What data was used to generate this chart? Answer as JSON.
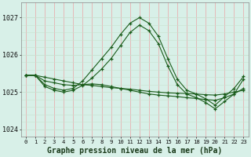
{
  "title": "Graphe pression niveau de la mer (hPa)",
  "bg_color": "#d8f0e8",
  "grid_color_v": "#e8b0b0",
  "grid_color_h": "#c8e0d0",
  "line_color": "#1a5c1a",
  "xlim_min": -0.5,
  "xlim_max": 23.5,
  "ylim": [
    1023.8,
    1027.4
  ],
  "yticks": [
    1024,
    1025,
    1026,
    1027
  ],
  "xticks": [
    0,
    1,
    2,
    3,
    4,
    5,
    6,
    7,
    8,
    9,
    10,
    11,
    12,
    13,
    14,
    15,
    16,
    17,
    18,
    19,
    20,
    21,
    22,
    23
  ],
  "xlabel_fontsize": 7,
  "series": [
    {
      "x": [
        0,
        1,
        2,
        3,
        4,
        5,
        6,
        7,
        8,
        9,
        10,
        11,
        12,
        13,
        14,
        15,
        16,
        17,
        18,
        19,
        20,
        21,
        22,
        23
      ],
      "y": [
        1025.45,
        1025.45,
        1025.4,
        1025.35,
        1025.3,
        1025.25,
        1025.2,
        1025.18,
        1025.15,
        1025.12,
        1025.1,
        1025.08,
        1025.05,
        1025.02,
        1025.0,
        1024.98,
        1024.97,
        1024.96,
        1024.95,
        1024.93,
        1024.92,
        1024.95,
        1025.0,
        1025.05
      ]
    },
    {
      "x": [
        0,
        1,
        2,
        3,
        4,
        5,
        6,
        7,
        8,
        9,
        10,
        11,
        12,
        13,
        14,
        15,
        16,
        17,
        18,
        19,
        20,
        21,
        22,
        23
      ],
      "y": [
        1025.45,
        1025.45,
        1025.3,
        1025.25,
        1025.2,
        1025.18,
        1025.2,
        1025.22,
        1025.2,
        1025.15,
        1025.1,
        1025.05,
        1025.0,
        1024.95,
        1024.92,
        1024.9,
        1024.88,
        1024.85,
        1024.83,
        1024.8,
        1024.78,
        1024.85,
        1024.95,
        1025.1
      ]
    },
    {
      "x": [
        0,
        1,
        2,
        3,
        4,
        5,
        6,
        7,
        8,
        9,
        10,
        11,
        12,
        13,
        14,
        15,
        16,
        17,
        18,
        19,
        20,
        21,
        22,
        23
      ],
      "y": [
        1025.45,
        1025.45,
        1025.2,
        1025.1,
        1025.05,
        1025.1,
        1025.3,
        1025.6,
        1025.9,
        1026.2,
        1026.55,
        1026.85,
        1027.0,
        1026.85,
        1026.5,
        1025.9,
        1025.35,
        1025.05,
        1024.95,
        1024.82,
        1024.65,
        1024.88,
        1025.1,
        1025.42
      ]
    },
    {
      "x": [
        0,
        1,
        2,
        3,
        4,
        5,
        6,
        7,
        8,
        9,
        10,
        11,
        12,
        13,
        14,
        15,
        16,
        17,
        18,
        19,
        20,
        21,
        22,
        23
      ],
      "y": [
        1025.45,
        1025.45,
        1025.15,
        1025.05,
        1025.0,
        1025.05,
        1025.18,
        1025.38,
        1025.62,
        1025.9,
        1026.25,
        1026.6,
        1026.8,
        1026.65,
        1026.3,
        1025.7,
        1025.2,
        1024.95,
        1024.85,
        1024.72,
        1024.55,
        1024.75,
        1024.95,
        1025.35
      ]
    }
  ]
}
